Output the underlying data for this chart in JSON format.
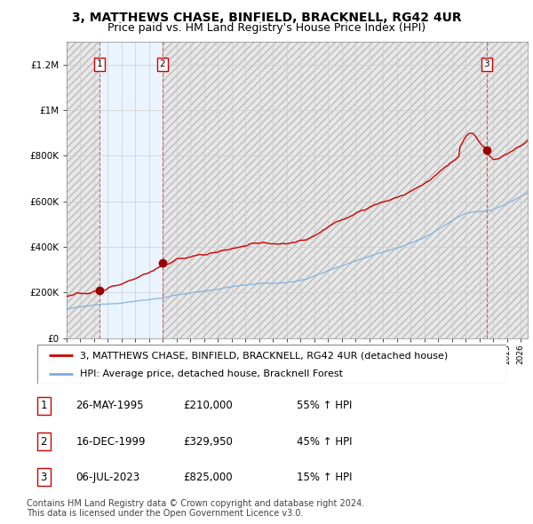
{
  "title": "3, MATTHEWS CHASE, BINFIELD, BRACKNELL, RG42 4UR",
  "subtitle": "Price paid vs. HM Land Registry's House Price Index (HPI)",
  "ylabel_ticks": [
    "£0",
    "£200K",
    "£400K",
    "£600K",
    "£800K",
    "£1M",
    "£1.2M"
  ],
  "ytick_values": [
    0,
    200000,
    400000,
    600000,
    800000,
    1000000,
    1200000
  ],
  "ylim": [
    0,
    1300000
  ],
  "xlim_start": 1993.0,
  "xlim_end": 2026.5,
  "sale_dates": [
    1995.4,
    1999.96,
    2023.51
  ],
  "sale_prices": [
    210000,
    329950,
    825000
  ],
  "sale_labels": [
    "1",
    "2",
    "3"
  ],
  "red_line_color": "#cc0000",
  "blue_line_color": "#7aaddd",
  "legend_label_red": "3, MATTHEWS CHASE, BINFIELD, BRACKNELL, RG42 4UR (detached house)",
  "legend_label_blue": "HPI: Average price, detached house, Bracknell Forest",
  "table_rows": [
    [
      "1",
      "26-MAY-1995",
      "£210,000",
      "55% ↑ HPI"
    ],
    [
      "2",
      "16-DEC-1999",
      "£329,950",
      "45% ↑ HPI"
    ],
    [
      "3",
      "06-JUL-2023",
      "£825,000",
      "15% ↑ HPI"
    ]
  ],
  "footnote": "Contains HM Land Registry data © Crown copyright and database right 2024.\nThis data is licensed under the Open Government Licence v3.0.",
  "title_fontsize": 10,
  "subtitle_fontsize": 9,
  "tick_fontsize": 7.5,
  "legend_fontsize": 8,
  "table_fontsize": 8.5,
  "footnote_fontsize": 7,
  "grid_color": "#cccccc",
  "hatch_facecolor": "#e8e8e8",
  "hatch_edgecolor": "#bbbbbb",
  "owned_fill_color": "#ddeeff",
  "dashed_line_color": "#cc4444"
}
